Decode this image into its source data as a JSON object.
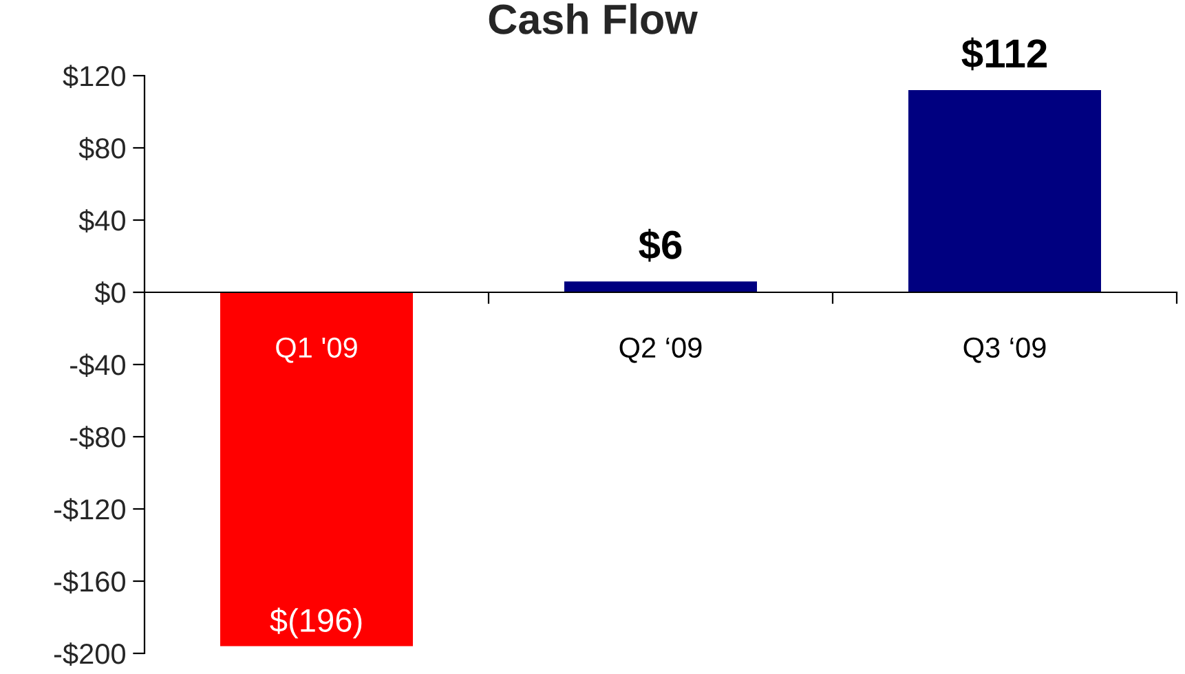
{
  "chart_data": {
    "type": "bar",
    "title": "Cash Flow",
    "categories": [
      "Q1 '09",
      "Q2 ‘09",
      "Q3 ‘09"
    ],
    "values": [
      -196,
      6,
      112
    ],
    "colors": [
      "#ff0000",
      "#000080",
      "#000080"
    ],
    "value_labels": [
      "$(196)",
      "$6",
      "$112"
    ],
    "ylim": [
      -200,
      120
    ],
    "yticks": [
      {
        "value": -200,
        "label": "-$200"
      },
      {
        "value": -160,
        "label": "-$160"
      },
      {
        "value": -120,
        "label": "-$120"
      },
      {
        "value": -80,
        "label": "-$80"
      },
      {
        "value": -40,
        "label": "-$40"
      },
      {
        "value": 0,
        "label": "$0"
      },
      {
        "value": 40,
        "label": "$40"
      },
      {
        "value": 80,
        "label": "$80"
      },
      {
        "value": 120,
        "label": "$120"
      }
    ],
    "grid": false,
    "legend": false
  }
}
